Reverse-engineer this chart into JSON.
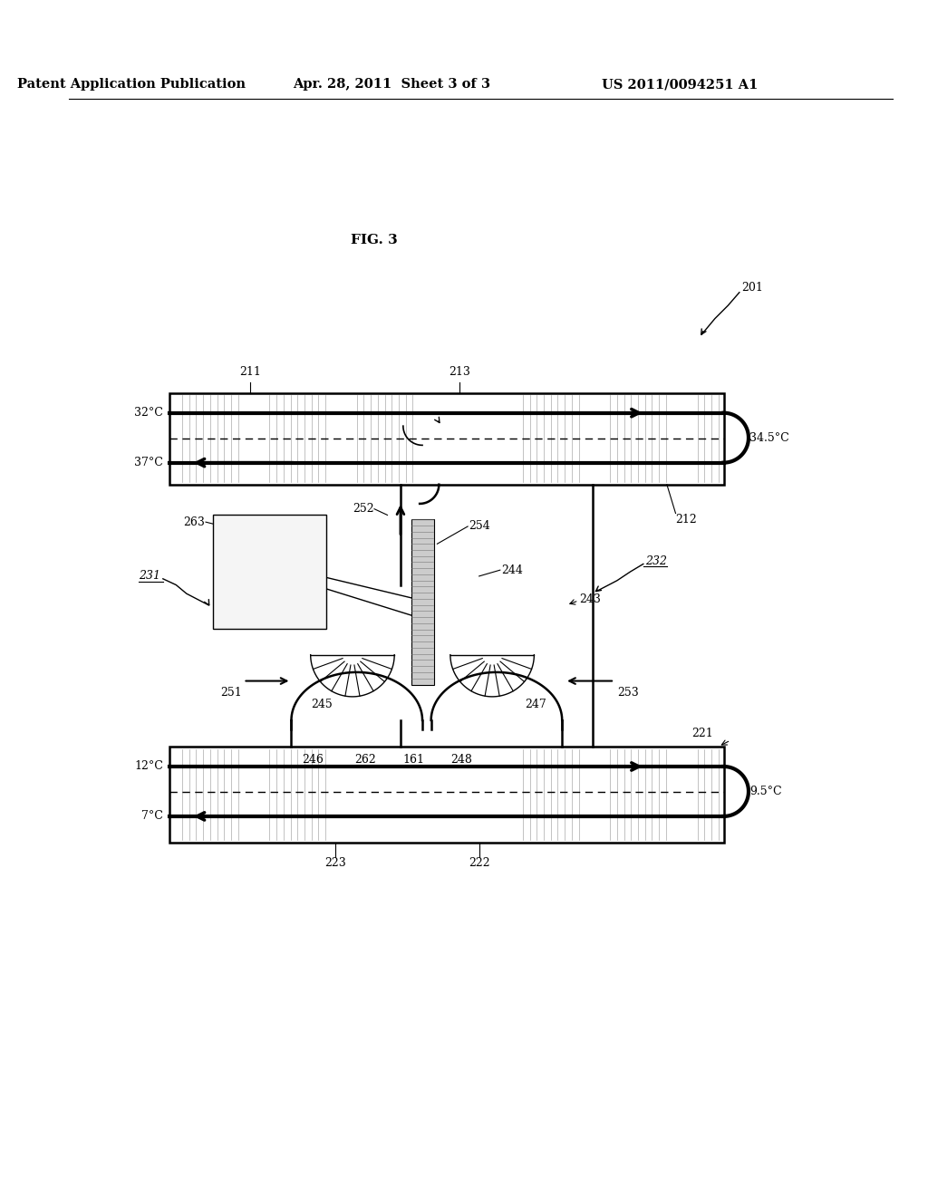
{
  "title_left": "Patent Application Publication",
  "title_mid": "Apr. 28, 2011  Sheet 3 of 3",
  "title_right": "US 2011/0094251 A1",
  "fig_label": "FIG. 3",
  "bg_color": "#ffffff",
  "line_color": "#000000",
  "temp_32": "32°C",
  "temp_34": "34.5°C",
  "temp_37": "37°C",
  "temp_12": "12°C",
  "temp_95": "9.5°C",
  "temp_7": "7°C",
  "font_size_header": 10.5,
  "font_size_label": 9,
  "font_size_fig": 11
}
